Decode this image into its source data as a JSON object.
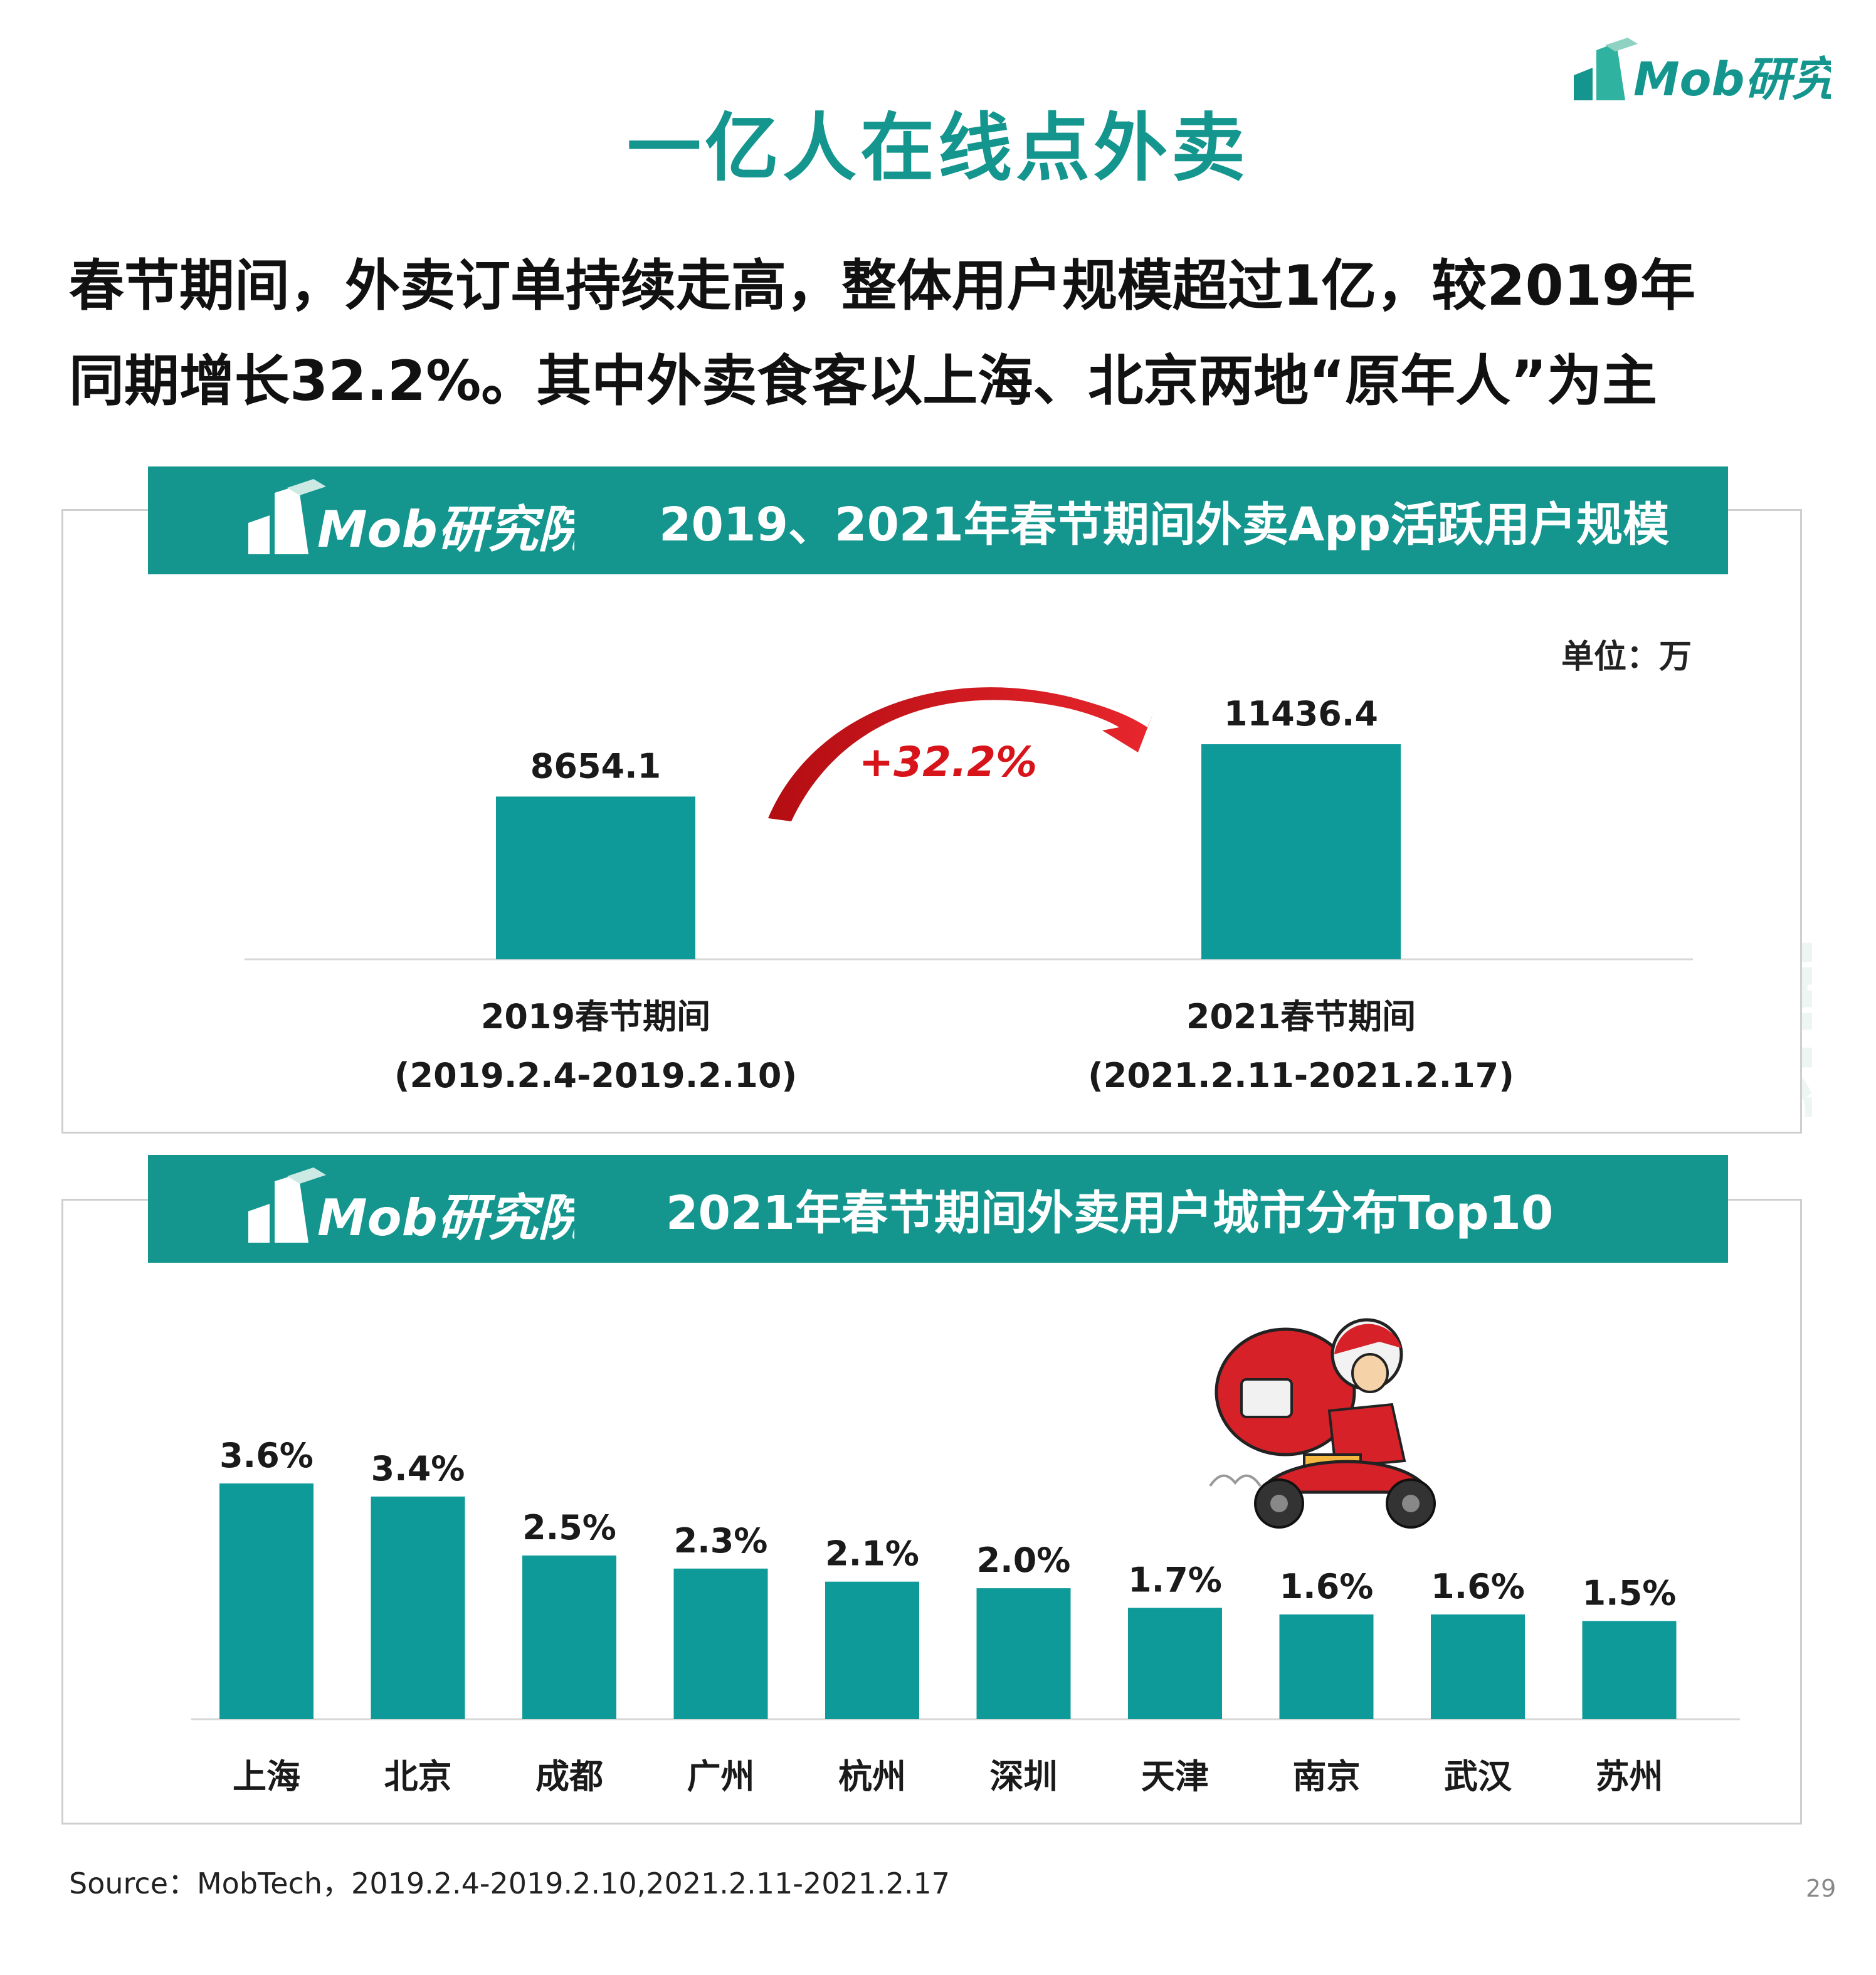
{
  "header": {
    "title": "一亿人在线点外卖",
    "brand": "Mob研究院"
  },
  "subtitle": {
    "line1": "春节期间，外卖订单持续走高，整体用户规模超过1亿，较2019年",
    "line2": "同期增长32.2%。其中外卖食客以上海、北京两地“原年人”为主"
  },
  "colors": {
    "accent": "#14968f",
    "bar": "#0f9a9a",
    "growth_arrow": "#d8141b"
  },
  "panel1": {
    "brand": "Mob研究院",
    "title": "2019、2021年春节期间外卖App活跃用户规模",
    "unit": "单位：万",
    "growth": "+32.2%",
    "cat_lines": [
      [
        "2019春节期间",
        "(2019.2.4-2019.2.10)"
      ],
      [
        "2021春节期间",
        "(2021.2.11-2021.2.17)"
      ]
    ]
  },
  "panel2": {
    "brand": "Mob研究院",
    "title": "2021年春节期间外卖用户城市分布Top10",
    "illustration": "delivery-rider-scooter"
  },
  "watermark": "MobTech 袤博",
  "footer": {
    "source": "Source：MobTech，2019.2.4-2019.2.10,2021.2.11-2021.2.17",
    "page": "29"
  },
  "chart_data": [
    {
      "type": "bar",
      "title": "2019、2021年春节期间外卖App活跃用户规模",
      "categories": [
        "2019春节期间",
        "2021春节期间"
      ],
      "values": [
        8654.1,
        11436.4
      ],
      "value_labels": [
        "8654.1",
        "11436.4"
      ],
      "unit": "万",
      "annotation": "+32.2%",
      "grid": false
    },
    {
      "type": "bar",
      "title": "2021年春节期间外卖用户城市分布Top10",
      "categories": [
        "上海",
        "北京",
        "成都",
        "广州",
        "杭州",
        "深圳",
        "天津",
        "南京",
        "武汉",
        "苏州"
      ],
      "values": [
        3.6,
        3.4,
        2.5,
        2.3,
        2.1,
        2.0,
        1.7,
        1.6,
        1.6,
        1.5
      ],
      "value_labels": [
        "3.6%",
        "3.4%",
        "2.5%",
        "2.3%",
        "2.1%",
        "2.0%",
        "1.7%",
        "1.6%",
        "1.6%",
        "1.5%"
      ],
      "unit": "%",
      "grid": false
    }
  ]
}
